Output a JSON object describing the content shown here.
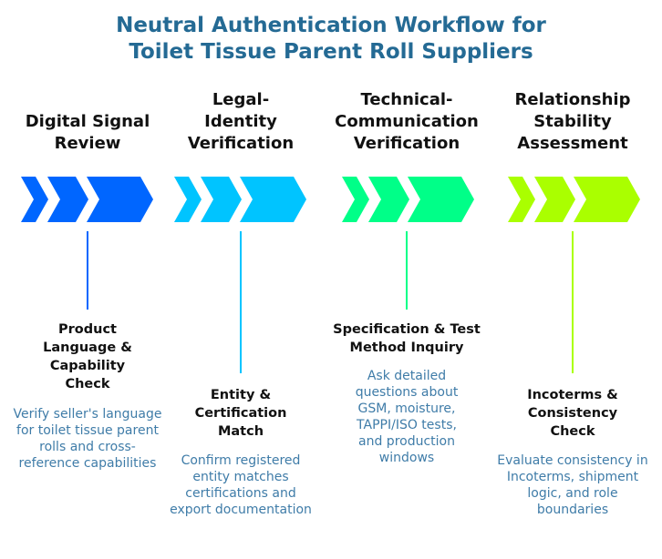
{
  "title": "Neutral Authentication Workflow for Toilet Tissue Parent Roll Suppliers",
  "stages": [
    {
      "heading": "Digital Signal Review",
      "color": "#0066FF",
      "step_title": "Product Language & Capability Check",
      "description": "Verify seller's language for toilet tissue parent rolls and cross-reference capabilities"
    },
    {
      "heading": "Legal-Identity Verification",
      "color": "#00C4FF",
      "step_title": "Entity & Certification Match",
      "description": "Confirm registered entity matches certifications and export documentation"
    },
    {
      "heading": "Technical-Communication Verification",
      "color": "#00FF88",
      "step_title": "Specification & Test Method Inquiry",
      "description": "Ask detailed questions about GSM, moisture, TAPPI/ISO tests, and production windows"
    },
    {
      "heading": "Relationship Stability Assessment",
      "color": "#AAFF00",
      "step_title": "Incoterms & Consistency Check",
      "description": "Evaluate consistency in Incoterms, shipment logic, and role boundaries"
    }
  ]
}
